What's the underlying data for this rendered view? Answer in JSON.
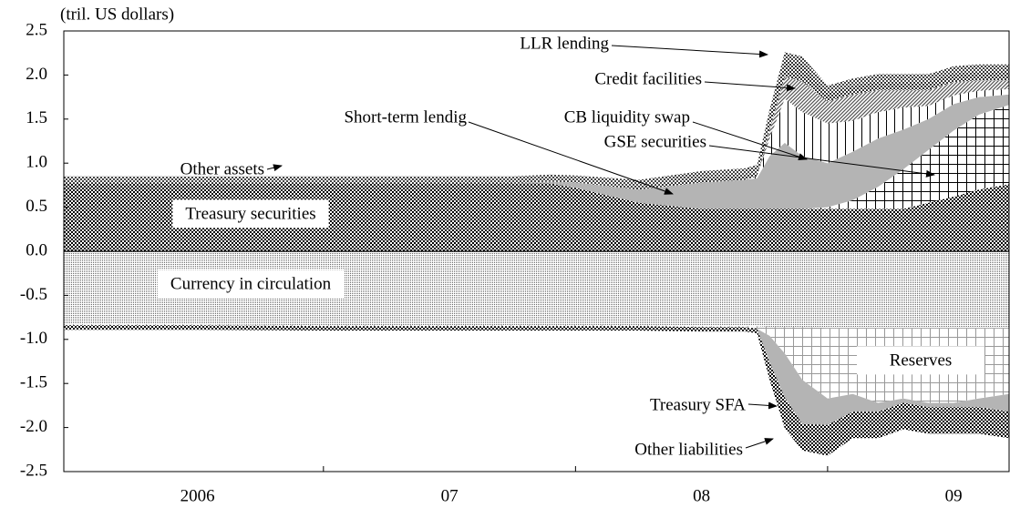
{
  "chart_data": {
    "type": "stacked_area",
    "ylabel": "(tril. US dollars)",
    "x": [
      2005.97,
      2006.5,
      2007.0,
      2007.5,
      2007.75,
      2007.9,
      2008.0,
      2008.25,
      2008.5,
      2008.67,
      2008.72,
      2008.77,
      2008.83,
      2008.9,
      2009.0,
      2009.1,
      2009.2,
      2009.3,
      2009.4,
      2009.5,
      2009.6,
      2009.72
    ],
    "xlim": [
      2005.97,
      2009.72
    ],
    "xticks": [
      {
        "value": 2006.5,
        "label": "2006"
      },
      {
        "value": 2007.5,
        "label": "07"
      },
      {
        "value": 2008.5,
        "label": "08"
      },
      {
        "value": 2009.5,
        "label": "09"
      }
    ],
    "xminor_ticks": [
      2007,
      2008,
      2009
    ],
    "ylim": [
      -2.5,
      2.5
    ],
    "yticks": [
      2.5,
      {
        "value": 2,
        "label": "2.0"
      },
      1.5,
      {
        "value": 1,
        "label": "1.0"
      },
      0.5,
      {
        "value": 0,
        "label": "0.0"
      },
      -0.5,
      {
        "value": -1,
        "label": "-1.0"
      },
      -1.5,
      {
        "value": -2,
        "label": "-2.0"
      },
      -2.5
    ],
    "series": [
      {
        "name": "Treasury securities",
        "pattern": "checker",
        "color": "#000000",
        "values": [
          0.77,
          0.77,
          0.77,
          0.77,
          0.77,
          0.77,
          0.72,
          0.55,
          0.48,
          0.48,
          0.48,
          0.48,
          0.48,
          0.48,
          0.48,
          0.48,
          0.48,
          0.48,
          0.55,
          0.62,
          0.7,
          0.76
        ]
      },
      {
        "name": "GSE securities",
        "pattern": "grid",
        "color": "#000000",
        "values": [
          0,
          0,
          0,
          0,
          0,
          0,
          0,
          0,
          0,
          0,
          0,
          0,
          0,
          0,
          0.02,
          0.1,
          0.25,
          0.45,
          0.6,
          0.75,
          0.85,
          0.9
        ]
      },
      {
        "name": "Short-term lendig",
        "pattern": "solid",
        "color": "#b4b4b4",
        "values": [
          0,
          0,
          0,
          0,
          0,
          0.02,
          0.06,
          0.15,
          0.3,
          0.33,
          0.35,
          0.6,
          0.75,
          0.6,
          0.5,
          0.55,
          0.55,
          0.45,
          0.35,
          0.3,
          0.2,
          0.12
        ]
      },
      {
        "name": "CB liquidity swap",
        "pattern": "vlines",
        "color": "#000000",
        "values": [
          0,
          0,
          0,
          0,
          0,
          0,
          0,
          0,
          0,
          0,
          0.02,
          0.2,
          0.5,
          0.5,
          0.45,
          0.35,
          0.3,
          0.25,
          0.15,
          0.1,
          0.07,
          0.06
        ]
      },
      {
        "name": "Credit facilities",
        "pattern": "diag",
        "color": "#555555",
        "values": [
          0,
          0,
          0,
          0,
          0,
          0,
          0,
          0,
          0,
          0,
          0,
          0.1,
          0.25,
          0.35,
          0.25,
          0.3,
          0.25,
          0.2,
          0.18,
          0.15,
          0.12,
          0.1
        ]
      },
      {
        "name": "LLR lending",
        "pattern": "checker",
        "color": "#333333",
        "values": [
          0,
          0,
          0,
          0,
          0,
          0,
          0,
          0.03,
          0.05,
          0.05,
          0.05,
          0.15,
          0.2,
          0.2,
          0.1,
          0.1,
          0.1,
          0.1,
          0.1,
          0.1,
          0.1,
          0.1
        ]
      },
      {
        "name": "Other assets",
        "pattern": "checker",
        "color": "#444444",
        "values": [
          0.08,
          0.08,
          0.08,
          0.08,
          0.08,
          0.08,
          0.08,
          0.08,
          0.08,
          0.08,
          0.08,
          0.08,
          0.08,
          0.08,
          0.08,
          0.08,
          0.08,
          0.08,
          0.08,
          0.08,
          0.08,
          0.08
        ]
      },
      {
        "name": "Currency in circulation",
        "pattern": "dots",
        "color": "#666666",
        "values": [
          -0.83,
          -0.83,
          -0.84,
          -0.84,
          -0.84,
          -0.84,
          -0.84,
          -0.84,
          -0.85,
          -0.85,
          -0.85,
          -0.86,
          -0.86,
          -0.86,
          -0.87,
          -0.87,
          -0.87,
          -0.87,
          -0.87,
          -0.87,
          -0.87,
          -0.87
        ]
      },
      {
        "name": "Reserves",
        "pattern": "grid",
        "color": "#999999",
        "values": [
          -0.01,
          -0.01,
          -0.01,
          -0.01,
          -0.01,
          -0.01,
          -0.01,
          -0.01,
          -0.01,
          -0.01,
          -0.03,
          -0.1,
          -0.3,
          -0.6,
          -0.8,
          -0.75,
          -0.85,
          -0.8,
          -0.85,
          -0.85,
          -0.8,
          -0.75
        ]
      },
      {
        "name": "Treasury SFA",
        "pattern": "solid",
        "color": "#b4b4b4",
        "values": [
          0,
          0,
          0,
          0,
          0,
          0,
          0,
          0,
          0,
          0,
          0,
          -0.3,
          -0.5,
          -0.5,
          -0.3,
          -0.2,
          -0.1,
          -0.05,
          -0.05,
          -0.05,
          -0.1,
          -0.2
        ]
      },
      {
        "name": "Other liabilities",
        "pattern": "checker",
        "color": "#000000",
        "values": [
          -0.05,
          -0.05,
          -0.05,
          -0.05,
          -0.05,
          -0.05,
          -0.05,
          -0.05,
          -0.05,
          -0.05,
          -0.05,
          -0.2,
          -0.35,
          -0.3,
          -0.35,
          -0.3,
          -0.3,
          -0.3,
          -0.3,
          -0.3,
          -0.3,
          -0.3
        ]
      }
    ]
  }
}
